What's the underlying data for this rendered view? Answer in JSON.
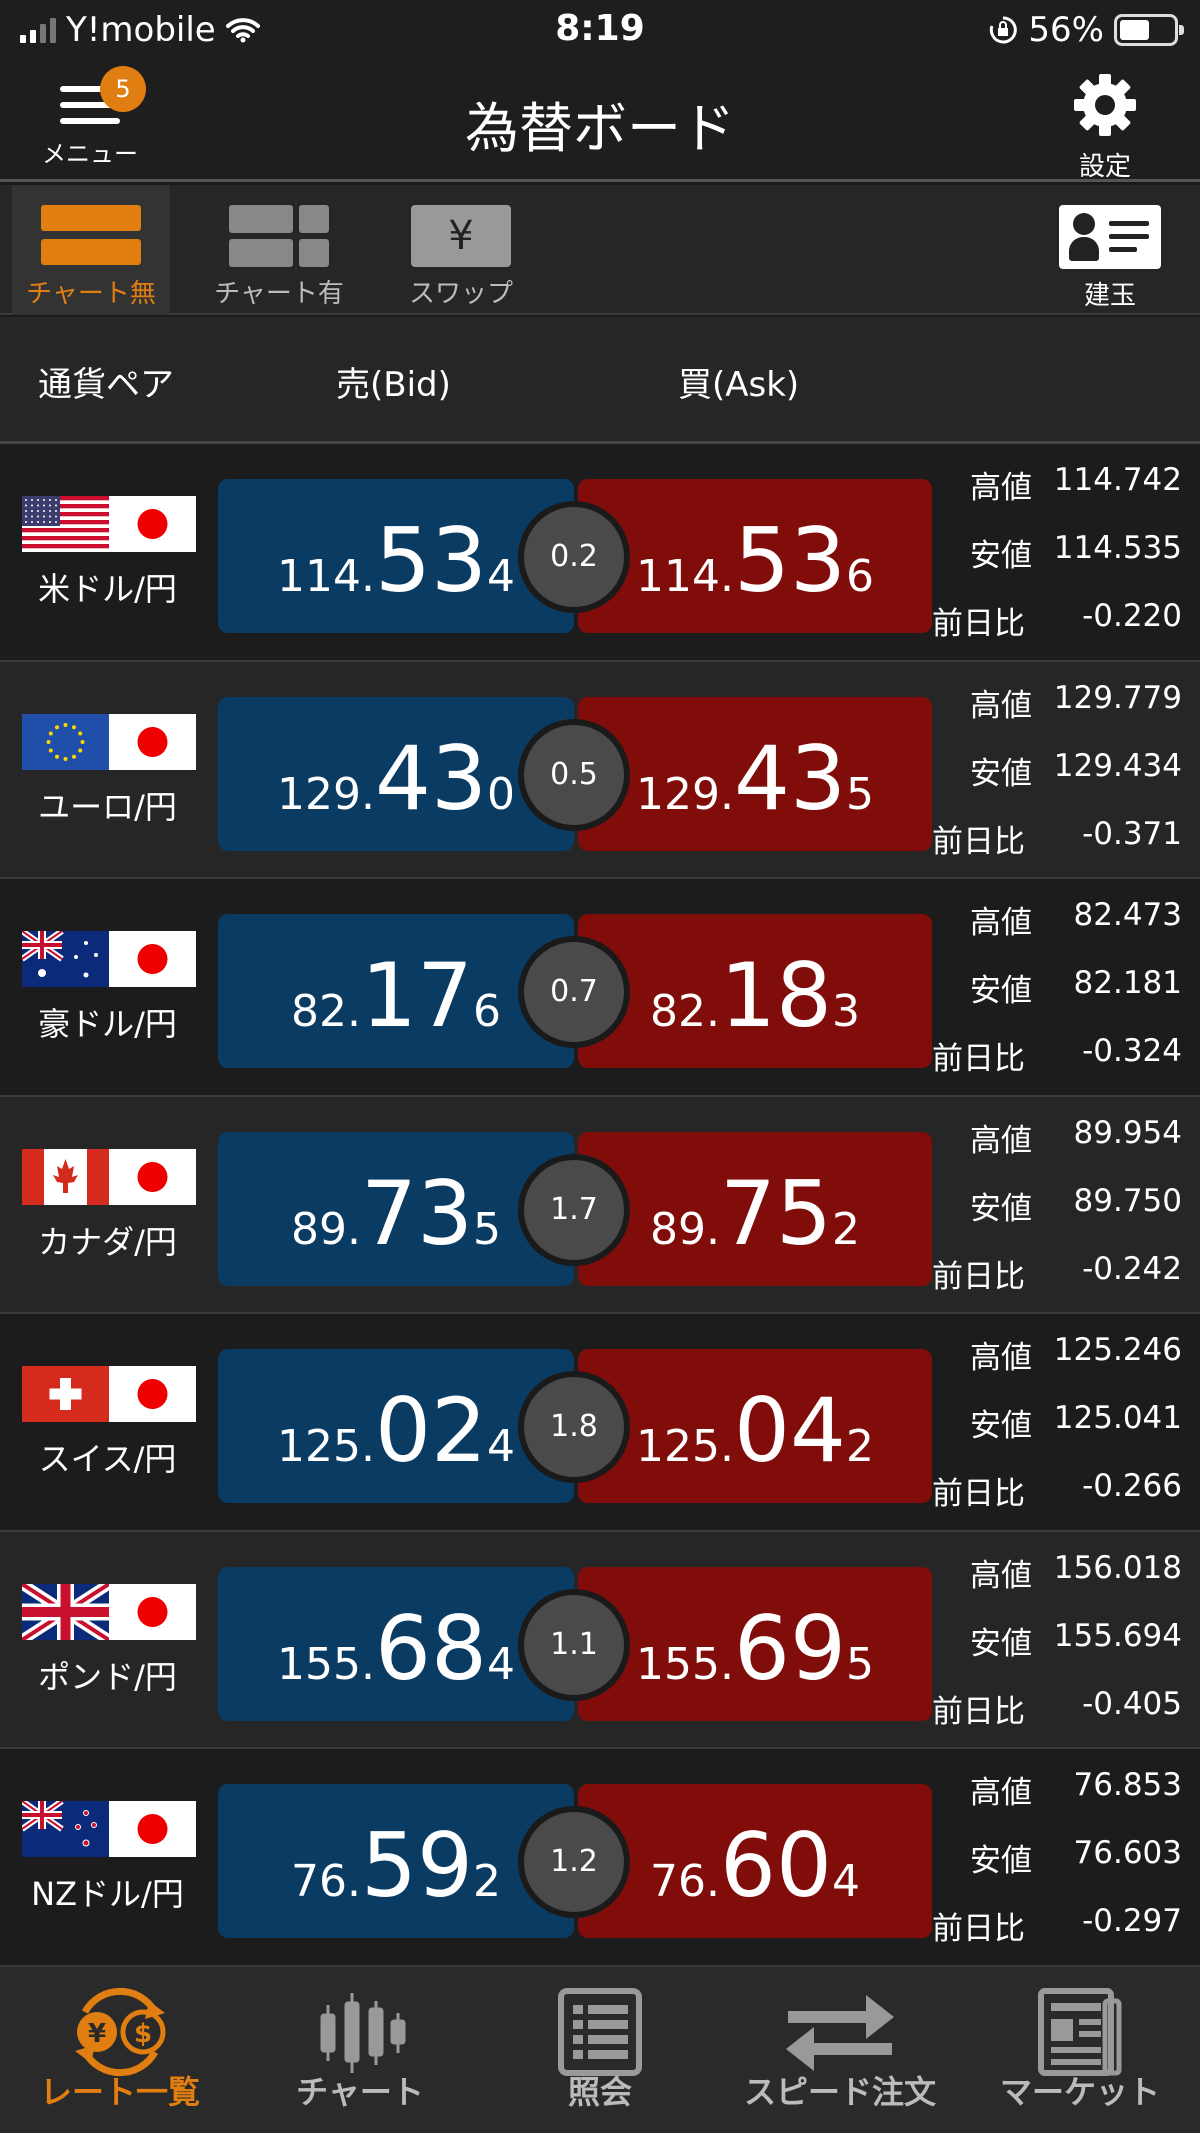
{
  "status": {
    "carrier": "Y!mobile",
    "time": "8:19",
    "battery": "56%"
  },
  "header": {
    "menu_label": "メニュー",
    "badge": "5",
    "title": "為替ボード",
    "settings_label": "設定"
  },
  "toolbar": {
    "no_chart": "チャート無",
    "with_chart": "チャート有",
    "swap": "スワップ",
    "swap_symbol": "¥",
    "positions": "建玉"
  },
  "columns": {
    "pair": "通貨ペア",
    "bid": "売(Bid)",
    "ask": "買(Ask)"
  },
  "labels": {
    "high": "高値",
    "low": "安値",
    "change": "前日比"
  },
  "rows": [
    {
      "name": "米ドル/円",
      "flag": "us",
      "bid_s": "114.",
      "bid_b": "53",
      "bid_t": "4",
      "ask_s": "114.",
      "ask_b": "53",
      "ask_t": "6",
      "spread": "0.2",
      "high": "114.742",
      "low": "114.535",
      "change": "-0.220"
    },
    {
      "name": "ユーロ/円",
      "flag": "eu",
      "bid_s": "129.",
      "bid_b": "43",
      "bid_t": "0",
      "ask_s": "129.",
      "ask_b": "43",
      "ask_t": "5",
      "spread": "0.5",
      "high": "129.779",
      "low": "129.434",
      "change": "-0.371"
    },
    {
      "name": "豪ドル/円",
      "flag": "au",
      "bid_s": "82.",
      "bid_b": "17",
      "bid_t": "6",
      "ask_s": "82.",
      "ask_b": "18",
      "ask_t": "3",
      "spread": "0.7",
      "high": "82.473",
      "low": "82.181",
      "change": "-0.324"
    },
    {
      "name": "カナダ/円",
      "flag": "ca",
      "bid_s": "89.",
      "bid_b": "73",
      "bid_t": "5",
      "ask_s": "89.",
      "ask_b": "75",
      "ask_t": "2",
      "spread": "1.7",
      "high": "89.954",
      "low": "89.750",
      "change": "-0.242"
    },
    {
      "name": "スイス/円",
      "flag": "ch",
      "bid_s": "125.",
      "bid_b": "02",
      "bid_t": "4",
      "ask_s": "125.",
      "ask_b": "04",
      "ask_t": "2",
      "spread": "1.8",
      "high": "125.246",
      "low": "125.041",
      "change": "-0.266"
    },
    {
      "name": "ポンド/円",
      "flag": "gb",
      "bid_s": "155.",
      "bid_b": "68",
      "bid_t": "4",
      "ask_s": "155.",
      "ask_b": "69",
      "ask_t": "5",
      "spread": "1.1",
      "high": "156.018",
      "low": "155.694",
      "change": "-0.405"
    },
    {
      "name": "NZドル/円",
      "flag": "nz",
      "bid_s": "76.",
      "bid_b": "59",
      "bid_t": "2",
      "ask_s": "76.",
      "ask_b": "60",
      "ask_t": "4",
      "spread": "1.2",
      "high": "76.853",
      "low": "76.603",
      "change": "-0.297"
    }
  ],
  "nav": {
    "rates": "レート一覧",
    "chart": "チャート",
    "inquiry": "照会",
    "speed": "スピード注文",
    "market": "マーケット",
    "yen_symbol": "¥",
    "dollar_symbol": "$"
  },
  "colors": {
    "accent": "#e07e12",
    "bid": "#0a3b63",
    "ask": "#800d0a"
  }
}
